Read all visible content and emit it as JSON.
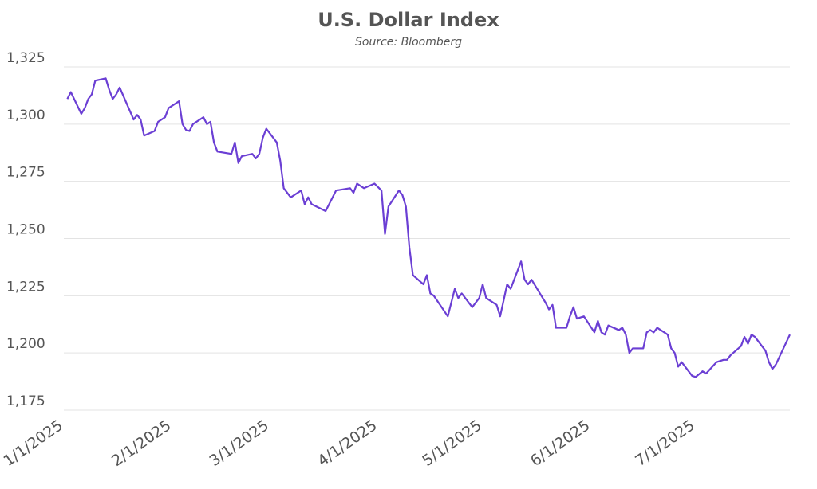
{
  "chart_data": {
    "type": "line",
    "title": "U.S. Dollar Index",
    "subtitle": "Source: Bloomberg",
    "x": [
      "1/2/2025",
      "1/3/2025",
      "1/6/2025",
      "1/7/2025",
      "1/8/2025",
      "1/9/2025",
      "1/10/2025",
      "1/13/2025",
      "1/14/2025",
      "1/15/2025",
      "1/16/2025",
      "1/17/2025",
      "1/21/2025",
      "1/22/2025",
      "1/23/2025",
      "1/24/2025",
      "1/27/2025",
      "1/28/2025",
      "1/30/2025",
      "1/31/2025",
      "2/3/2025",
      "2/4/2025",
      "2/5/2025",
      "2/6/2025",
      "2/7/2025",
      "2/10/2025",
      "2/11/2025",
      "2/12/2025",
      "2/13/2025",
      "2/14/2025",
      "2/18/2025",
      "2/19/2025",
      "2/20/2025",
      "2/21/2025",
      "2/24/2025",
      "2/25/2025",
      "2/26/2025",
      "2/27/2025",
      "2/28/2025",
      "3/3/2025",
      "3/4/2025",
      "3/5/2025",
      "3/7/2025",
      "3/10/2025",
      "3/11/2025",
      "3/12/2025",
      "3/13/2025",
      "3/17/2025",
      "3/20/2025",
      "3/24/2025",
      "3/25/2025",
      "3/26/2025",
      "3/27/2025",
      "3/28/2025",
      "3/31/2025",
      "4/2/2025",
      "4/3/2025",
      "4/4/2025",
      "4/7/2025",
      "4/8/2025",
      "4/9/2025",
      "4/10/2025",
      "4/11/2025",
      "4/14/2025",
      "4/15/2025",
      "4/16/2025",
      "4/17/2025",
      "4/21/2025",
      "4/23/2025",
      "4/24/2025",
      "4/25/2025",
      "4/28/2025",
      "4/30/2025",
      "5/1/2025",
      "5/2/2025",
      "5/5/2025",
      "5/6/2025",
      "5/8/2025",
      "5/9/2025",
      "5/12/2025",
      "5/13/2025",
      "5/14/2025",
      "5/15/2025",
      "5/19/2025",
      "5/20/2025",
      "5/21/2025",
      "5/22/2025",
      "5/25/2025",
      "5/26/2025",
      "5/27/2025",
      "5/28/2025",
      "5/30/2025",
      "6/2/2025",
      "6/3/2025",
      "6/4/2025",
      "6/5/2025",
      "6/6/2025",
      "6/9/2025",
      "6/10/2025",
      "6/11/2025",
      "6/12/2025",
      "6/13/2025",
      "6/16/2025",
      "6/17/2025",
      "6/18/2025",
      "6/19/2025",
      "6/20/2025",
      "6/23/2025",
      "6/24/2025",
      "6/25/2025",
      "6/26/2025",
      "6/27/2025",
      "6/30/2025",
      "7/1/2025",
      "7/3/2025",
      "7/4/2025",
      "7/7/2025",
      "7/9/2025",
      "7/10/2025",
      "7/11/2025",
      "7/14/2025",
      "7/15/2025",
      "7/16/2025",
      "7/17/2025",
      "7/18/2025",
      "7/21/2025",
      "7/22/2025",
      "7/23/2025",
      "7/24/2025",
      "7/28/2025"
    ],
    "series": [
      {
        "name": "U.S. Dollar Index",
        "color": "#6b3fd4",
        "values": [
          1311,
          1314,
          1304.5,
          1307,
          1311,
          1313,
          1319,
          1320,
          1315,
          1311,
          1313,
          1316,
          1302,
          1304,
          1302,
          1295,
          1297,
          1301,
          1303,
          1307,
          1310,
          1300,
          1297.5,
          1297,
          1300,
          1303,
          1300,
          1301,
          1292,
          1288,
          1287,
          1292,
          1283,
          1286,
          1287,
          1285,
          1287,
          1294,
          1298,
          1292,
          1284,
          1272,
          1268,
          1271,
          1265,
          1268,
          1265,
          1262,
          1271,
          1272,
          1270,
          1274,
          1273,
          1272,
          1274,
          1271,
          1252,
          1264,
          1271,
          1269,
          1264,
          1246,
          1234,
          1230,
          1234,
          1226,
          1225,
          1216,
          1228,
          1224,
          1226,
          1220,
          1224,
          1230,
          1224,
          1221,
          1216,
          1230,
          1228,
          1240,
          1232,
          1230,
          1232,
          1222,
          1219,
          1221,
          1211,
          1211,
          1216,
          1220,
          1215,
          1216,
          1209,
          1214,
          1209,
          1208,
          1212,
          1210,
          1211,
          1208,
          1200,
          1202,
          1202,
          1209,
          1210,
          1209,
          1211,
          1208,
          1202,
          1200,
          1194,
          1196,
          1190,
          1189.5,
          1192,
          1191,
          1196,
          1197,
          1197,
          1199,
          1203,
          1207,
          1204,
          1208,
          1207,
          1201,
          1196,
          1193,
          1195,
          1208
        ]
      }
    ],
    "xlim": [
      "1/1/2025",
      "7/28/2025"
    ],
    "xticks": [
      "1/1/2025",
      "2/1/2025",
      "3/1/2025",
      "4/1/2025",
      "5/1/2025",
      "6/1/2025",
      "7/1/2025"
    ],
    "ylim": [
      1175,
      1325
    ],
    "yticks": [
      {
        "value": 1175,
        "label": "1,175"
      },
      {
        "value": 1200,
        "label": "1,200"
      },
      {
        "value": 1225,
        "label": "1,225"
      },
      {
        "value": 1250,
        "label": "1,250"
      },
      {
        "value": 1275,
        "label": "1,275"
      },
      {
        "value": 1300,
        "label": "1,300"
      },
      {
        "value": 1325,
        "label": "1,325"
      }
    ],
    "grid": true
  }
}
